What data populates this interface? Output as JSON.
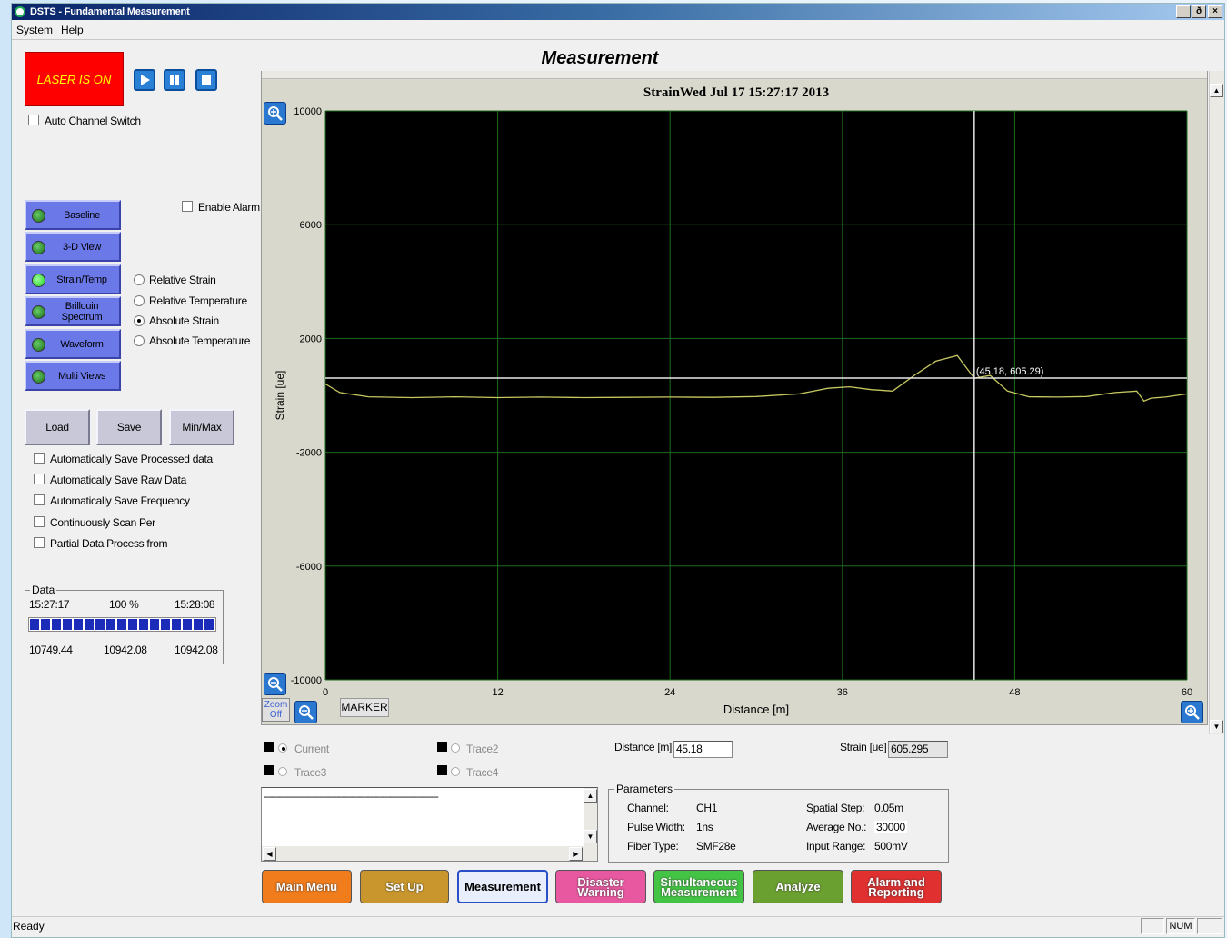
{
  "window": {
    "title": "DSTS - Fundamental Measurement",
    "controls": {
      "minimize": "_",
      "restore": "ð",
      "close": "×"
    }
  },
  "menu": [
    "System",
    "Help"
  ],
  "page_title": "Measurement",
  "laser_status": "LASER IS ON",
  "auto_channel_switch": {
    "label": "Auto Channel Switch",
    "checked": false
  },
  "enable_alarm": {
    "label": "Enable Alarm",
    "checked": false
  },
  "sidebar_buttons": [
    {
      "label": "Baseline",
      "active": false
    },
    {
      "label": "3-D View",
      "active": false
    },
    {
      "label": "Strain/Temp",
      "active": true
    },
    {
      "label": "Brillouin Spectrum",
      "active": false
    },
    {
      "label": "Waveform",
      "active": false
    },
    {
      "label": "Multi Views",
      "active": false
    }
  ],
  "mode_options": [
    {
      "label": "Relative Strain",
      "selected": false
    },
    {
      "label": "Relative Temperature",
      "selected": false
    },
    {
      "label": "Absolute Strain",
      "selected": true
    },
    {
      "label": "Absolute Temperature",
      "selected": false
    }
  ],
  "file_buttons": [
    "Load",
    "Save",
    "Min/Max"
  ],
  "save_options": [
    {
      "label": "Automatically Save Processed data",
      "checked": false
    },
    {
      "label": "Automatically Save Raw Data",
      "checked": false
    },
    {
      "label": "Automatically Save Frequency",
      "checked": false
    },
    {
      "label": "Continuously Scan Per",
      "checked": false
    },
    {
      "label": "Partial Data Process from",
      "checked": false
    }
  ],
  "data_box": {
    "title": "Data",
    "start_time": "15:27:17",
    "progress_label": "100 %",
    "progress_fraction": 1.0,
    "end_time": "15:28:08",
    "values": [
      "10749.44",
      "10942.08",
      "10942.08"
    ]
  },
  "chart_data": {
    "type": "line",
    "title": "StrainWed Jul 17 15:27:17 2013",
    "xlabel": "Distance [m]",
    "ylabel": "Strain [ue]",
    "xlim": [
      0,
      60
    ],
    "ylim": [
      -10000,
      10000
    ],
    "x_ticks": [
      0,
      12,
      24,
      36,
      48,
      60
    ],
    "y_ticks": [
      10000,
      6000,
      2000,
      -2000,
      -6000,
      -10000
    ],
    "grid": true,
    "series": [
      {
        "color": "#c8c860",
        "x": [
          0,
          1,
          3,
          6,
          9,
          12,
          15,
          18,
          21,
          24,
          27,
          30,
          33,
          35,
          36.5,
          38,
          39.5,
          41,
          42.5,
          44,
          45.18,
          46.3,
          47.5,
          49,
          51,
          53,
          55,
          56.5,
          57,
          57.5,
          58.5,
          60
        ],
        "y": [
          400,
          100,
          -50,
          -80,
          -50,
          -80,
          -60,
          -80,
          -70,
          -60,
          -70,
          -40,
          50,
          250,
          300,
          200,
          150,
          700,
          1200,
          1400,
          605,
          700,
          150,
          -50,
          -60,
          -40,
          100,
          150,
          -200,
          -100,
          -60,
          50
        ]
      }
    ],
    "crosshair": {
      "x": 45.18,
      "y": 605.29
    },
    "marker_label": "(45.18, 605.29)"
  },
  "zoom_off": "Zoom Off",
  "marker_button": "MARKER",
  "traces": [
    {
      "label": "Current"
    },
    {
      "label": "Trace2"
    },
    {
      "label": "Trace3"
    },
    {
      "label": "Trace4"
    }
  ],
  "readout": {
    "distance_label": "Distance [m]",
    "distance_value": "45.18",
    "strain_label": "Strain [ue]",
    "strain_value": "605.295"
  },
  "log_text": "------------------------------------------------------------------------",
  "parameters": {
    "title": "Parameters",
    "rows": [
      {
        "k1": "Channel:",
        "v1": "CH1",
        "k2": "Spatial Step:",
        "v2": "0.05m"
      },
      {
        "k1": "Pulse Width:",
        "v1": "1ns",
        "k2": "Average No.:",
        "v2": "30000"
      },
      {
        "k1": "Fiber Type:",
        "v1": "SMF28e",
        "k2": "Input Range:",
        "v2": "500mV"
      }
    ]
  },
  "nav": [
    {
      "label": "Main Menu",
      "color": "#f07c1c"
    },
    {
      "label": "Set Up",
      "color": "#c8962c"
    },
    {
      "label": "Measurement",
      "color": "#e8eefc"
    },
    {
      "label": "Disaster Warning",
      "color": "#e858a0"
    },
    {
      "label": "Simultaneous Measurement",
      "color": "#44c444"
    },
    {
      "label": "Analyze",
      "color": "#6aa030"
    },
    {
      "label": "Alarm and Reporting",
      "color": "#e03030"
    }
  ],
  "status": {
    "text": "Ready",
    "num": "NUM"
  }
}
